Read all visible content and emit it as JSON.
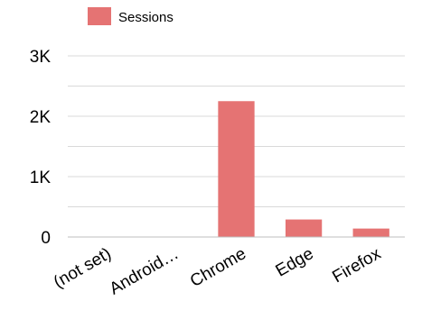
{
  "chart_data": {
    "type": "bar",
    "categories": [
      "(not set)",
      "Android…",
      "Chrome",
      "Edge",
      "Firefox"
    ],
    "series": [
      {
        "name": "Sessions",
        "values": [
          0,
          0,
          2250,
          290,
          140
        ],
        "color": "#e57373"
      }
    ],
    "ylim": [
      0,
      3000
    ],
    "yticks": [
      0,
      1000,
      2000,
      3000
    ],
    "ytick_labels": [
      "0",
      "1K",
      "2K",
      "3K"
    ],
    "grid": true,
    "gridline_color": "#d9d9d9",
    "legend_position": "top-left"
  }
}
